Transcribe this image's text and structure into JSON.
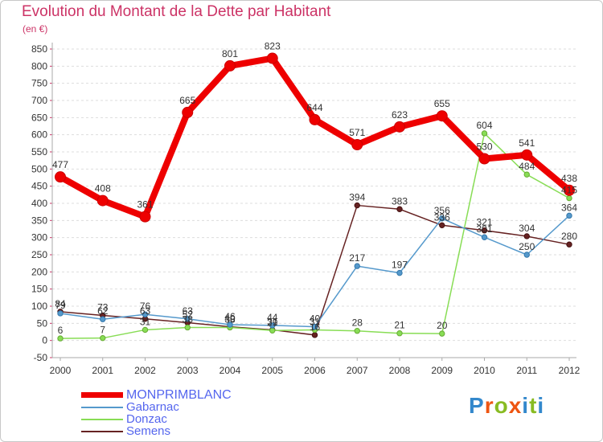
{
  "title": "Evolution du Montant de la Dette par Habitant",
  "unit": "(en €)",
  "brand": "Proxiti",
  "chart_data": {
    "type": "line",
    "x": [
      "2000",
      "2001",
      "2002",
      "2003",
      "2004",
      "2005",
      "2006",
      "2007",
      "2008",
      "2009",
      "2010",
      "2011",
      "2012"
    ],
    "ylim": [
      -50,
      850
    ],
    "yticks": [
      -50,
      0,
      50,
      100,
      150,
      200,
      250,
      300,
      350,
      400,
      450,
      500,
      550,
      600,
      650,
      700,
      750,
      800,
      850
    ],
    "grid": "horizontal",
    "legend_position": "bottom-left",
    "series": [
      {
        "name": "MONPRIMBLANC",
        "color": "#ee0000",
        "emphasis": true,
        "values": [
          477,
          408,
          361,
          665,
          801,
          823,
          644,
          571,
          623,
          655,
          530,
          541,
          438
        ]
      },
      {
        "name": "Gabarnac",
        "color": "#5599cc",
        "values": [
          79,
          62,
          76,
          63,
          46,
          44,
          40,
          217,
          197,
          356,
          301,
          250,
          364
        ]
      },
      {
        "name": "Donzac",
        "color": "#88dd55",
        "values": [
          6,
          7,
          31,
          38,
          38,
          29,
          31,
          28,
          21,
          20,
          604,
          484,
          415
        ]
      },
      {
        "name": "Semens",
        "color": "#662222",
        "values": [
          84,
          73,
          63,
          52,
          40,
          31,
          16,
          394,
          383,
          336,
          321,
          304,
          280
        ]
      }
    ]
  }
}
